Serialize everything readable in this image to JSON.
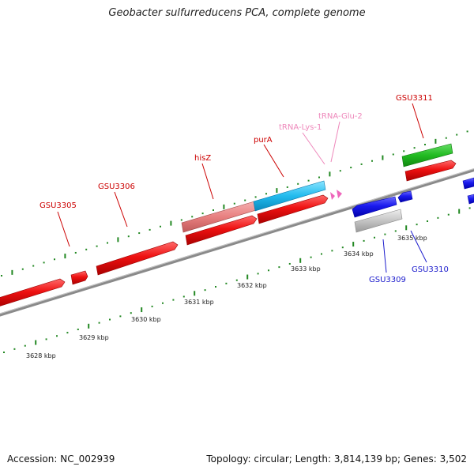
{
  "title": "Geobacter sulfurreducens PCA, complete genome",
  "footer": {
    "accession": "Accession: NC_002939",
    "summary": "Topology: circular; Length: 3,814,139 bp; Genes: 3,502"
  },
  "colors": {
    "forward_gene": "#ee1111",
    "reverse_gene": "#1a1aee",
    "his_gene": "#e88080",
    "pur_gene": "#22bbee",
    "green_gene": "#22bb22",
    "trna": "#ee66bb",
    "gray_gene": "#c4c4c4",
    "tick": "#228822",
    "label_forward": "#cc0000",
    "label_reverse": "#1a1acc",
    "label_trna": "#ee88bb"
  },
  "kbp_labels": [
    "3628 kbp",
    "3629 kbp",
    "3630 kbp",
    "3631 kbp",
    "3632 kbp",
    "3633 kbp",
    "3634 kbp",
    "3635 kbp"
  ],
  "gene_labels": {
    "gsu3305": "GSU3305",
    "gsu3306": "GSU3306",
    "hisz": "hisZ",
    "pura": "purA",
    "trna_lys": "tRNA-Lys-1",
    "trna_glu": "tRNA-Glu-2",
    "gsu3311": "GSU3311",
    "gsu3309": "GSU3309",
    "gsu3310": "GSU3310"
  }
}
